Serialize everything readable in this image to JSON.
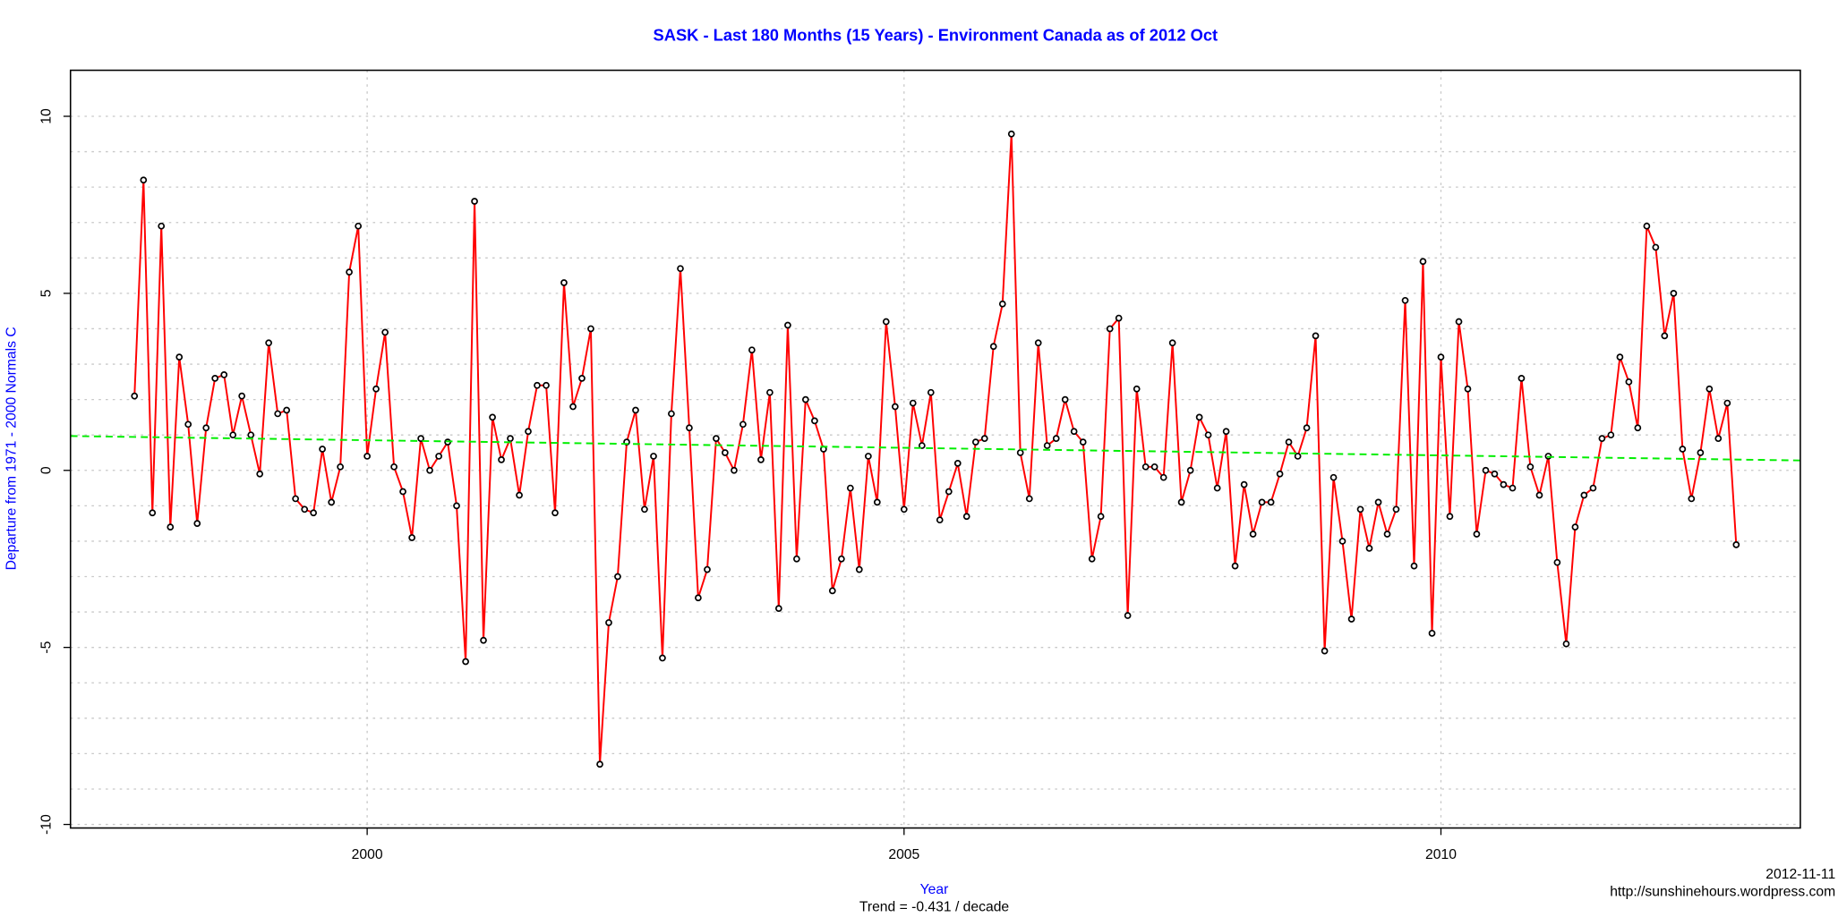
{
  "chart_data": {
    "type": "line",
    "title": "SASK - Last 180 Months (15 Years) - Environment Canada as of 2012 Oct",
    "x_label": "Year",
    "y_label": "Departure from 1971 - 2000 Normals C",
    "subtitle": "Trend = -0.431 / decade",
    "date_note": "2012-11-11",
    "source": "http://sunshinehours.wordpress.com",
    "xlim": [
      1997.237,
      2013.347
    ],
    "ylim": [
      -10.1,
      11.3
    ],
    "xticks": [
      2000,
      2005,
      2010
    ],
    "yticks": [
      -10,
      -5,
      0,
      5,
      10
    ],
    "ygrid": [
      -10,
      -9,
      -8,
      -7,
      -6,
      -5,
      -4,
      -3,
      -2,
      -1,
      0,
      1,
      2,
      3,
      4,
      5,
      6,
      7,
      8,
      9,
      10
    ],
    "grid": true,
    "x": [
      1997.833,
      1997.917,
      1998,
      1998.083,
      1998.167,
      1998.25,
      1998.333,
      1998.417,
      1998.5,
      1998.583,
      1998.667,
      1998.75,
      1998.833,
      1998.917,
      1999,
      1999.083,
      1999.167,
      1999.25,
      1999.333,
      1999.417,
      1999.5,
      1999.583,
      1999.667,
      1999.75,
      1999.833,
      1999.917,
      2000,
      2000.083,
      2000.167,
      2000.25,
      2000.333,
      2000.417,
      2000.5,
      2000.583,
      2000.667,
      2000.75,
      2000.833,
      2000.917,
      2001,
      2001.083,
      2001.167,
      2001.25,
      2001.333,
      2001.417,
      2001.5,
      2001.583,
      2001.667,
      2001.75,
      2001.833,
      2001.917,
      2002,
      2002.083,
      2002.167,
      2002.25,
      2002.333,
      2002.417,
      2002.5,
      2002.583,
      2002.667,
      2002.75,
      2002.833,
      2002.917,
      2003,
      2003.083,
      2003.167,
      2003.25,
      2003.333,
      2003.417,
      2003.5,
      2003.583,
      2003.667,
      2003.75,
      2003.833,
      2003.917,
      2004,
      2004.083,
      2004.167,
      2004.25,
      2004.333,
      2004.417,
      2004.5,
      2004.583,
      2004.667,
      2004.75,
      2004.833,
      2004.917,
      2005,
      2005.083,
      2005.167,
      2005.25,
      2005.333,
      2005.417,
      2005.5,
      2005.583,
      2005.667,
      2005.75,
      2005.833,
      2005.917,
      2006,
      2006.083,
      2006.167,
      2006.25,
      2006.333,
      2006.417,
      2006.5,
      2006.583,
      2006.667,
      2006.75,
      2006.833,
      2006.917,
      2007,
      2007.083,
      2007.167,
      2007.25,
      2007.333,
      2007.417,
      2007.5,
      2007.583,
      2007.667,
      2007.75,
      2007.833,
      2007.917,
      2008,
      2008.083,
      2008.167,
      2008.25,
      2008.333,
      2008.417,
      2008.5,
      2008.583,
      2008.667,
      2008.75,
      2008.833,
      2008.917,
      2009,
      2009.083,
      2009.167,
      2009.25,
      2009.333,
      2009.417,
      2009.5,
      2009.583,
      2009.667,
      2009.75,
      2009.833,
      2009.917,
      2010,
      2010.083,
      2010.167,
      2010.25,
      2010.333,
      2010.417,
      2010.5,
      2010.583,
      2010.667,
      2010.75,
      2010.833,
      2010.917,
      2011,
      2011.083,
      2011.167,
      2011.25,
      2011.333,
      2011.417,
      2011.5,
      2011.583,
      2011.667,
      2011.75,
      2011.833,
      2011.917,
      2012,
      2012.083,
      2012.167,
      2012.25,
      2012.333,
      2012.417,
      2012.5,
      2012.583,
      2012.667,
      2012.75
    ],
    "series": [
      {
        "color": "#ff0000",
        "point_color": "#000000",
        "values": [
          2.1,
          8.2,
          -1.2,
          6.9,
          -1.6,
          3.2,
          1.3,
          -1.5,
          1.2,
          2.6,
          2.7,
          1.0,
          2.1,
          1.0,
          -0.1,
          3.6,
          1.6,
          1.7,
          -0.8,
          -1.1,
          -1.2,
          0.6,
          -0.9,
          0.1,
          5.6,
          6.9,
          0.4,
          2.3,
          3.9,
          0.1,
          -0.6,
          -1.9,
          0.9,
          0.0,
          0.4,
          0.8,
          -1.0,
          -5.4,
          7.6,
          -4.8,
          1.5,
          0.3,
          0.9,
          -0.7,
          1.1,
          2.4,
          2.4,
          -1.2,
          5.3,
          1.8,
          2.6,
          4.0,
          -8.3,
          -4.3,
          -3.0,
          0.8,
          1.7,
          -1.1,
          0.4,
          -5.3,
          1.6,
          5.7,
          1.2,
          -3.6,
          -2.8,
          0.9,
          0.5,
          0.0,
          1.3,
          3.4,
          0.3,
          2.2,
          -3.9,
          4.1,
          -2.5,
          2.0,
          1.4,
          0.6,
          -3.4,
          -2.5,
          -0.5,
          -2.8,
          0.4,
          -0.9,
          4.2,
          1.8,
          -1.1,
          1.9,
          0.7,
          2.2,
          -1.4,
          -0.6,
          0.2,
          -1.3,
          0.8,
          0.9,
          3.5,
          4.7,
          9.5,
          0.5,
          -0.8,
          3.6,
          0.7,
          0.9,
          2.0,
          1.1,
          0.8,
          -2.5,
          -1.3,
          4.0,
          4.3,
          -4.1,
          2.3,
          0.1,
          0.1,
          -0.2,
          3.6,
          -0.9,
          0.0,
          1.5,
          1.0,
          -0.5,
          1.1,
          -2.7,
          -0.4,
          -1.8,
          -0.9,
          -0.9,
          -0.1,
          0.8,
          0.4,
          1.2,
          3.8,
          -5.1,
          -0.2,
          -2.0,
          -4.2,
          -1.1,
          -2.2,
          -0.9,
          -1.8,
          -1.1,
          4.8,
          -2.7,
          5.9,
          -4.6,
          3.2,
          -1.3,
          4.2,
          2.3,
          -1.8,
          0.0,
          -0.1,
          -0.4,
          -0.5,
          2.6,
          0.1,
          -0.7,
          0.4,
          -2.6,
          -4.9,
          -1.6,
          -0.7,
          -0.5,
          0.9,
          1.0,
          3.2,
          2.5,
          1.2,
          6.9,
          6.3,
          3.8,
          5.0,
          0.6,
          -0.8,
          0.5,
          2.3,
          0.9,
          1.9,
          -2.1
        ]
      }
    ],
    "trend": {
      "x": [
        1997.237,
        2013.347
      ],
      "y": [
        0.97,
        0.28
      ],
      "color": "#00ee00"
    }
  }
}
